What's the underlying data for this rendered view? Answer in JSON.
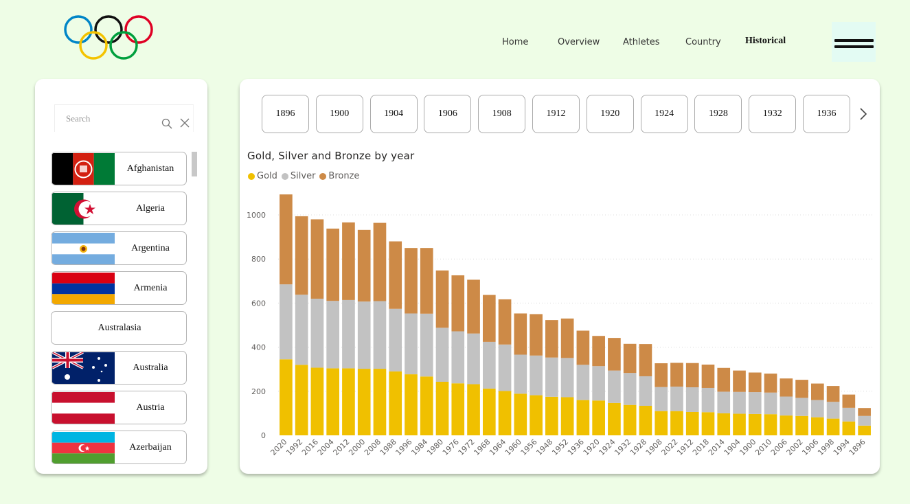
{
  "nav": {
    "items": [
      {
        "label": "Home",
        "name": "nav-home"
      },
      {
        "label": "Overview",
        "name": "nav-overview"
      },
      {
        "label": "Athletes",
        "name": "nav-athletes"
      },
      {
        "label": "Country",
        "name": "nav-country"
      },
      {
        "label": "Historical",
        "name": "nav-historical",
        "active": true
      }
    ]
  },
  "search": {
    "placeholder": "Search"
  },
  "countries": [
    {
      "name": "Afghanistan",
      "flag": "afghanistan-flag"
    },
    {
      "name": "Algeria",
      "flag": "algeria-flag"
    },
    {
      "name": "Argentina",
      "flag": "argentina-flag"
    },
    {
      "name": "Armenia",
      "flag": "armenia-flag"
    },
    {
      "name": "Australasia",
      "flag": null
    },
    {
      "name": "Australia",
      "flag": "australia-flag"
    },
    {
      "name": "Austria",
      "flag": "austria-flag"
    },
    {
      "name": "Azerbaijan",
      "flag": "azerbaijan-flag"
    }
  ],
  "years": [
    "1896",
    "1900",
    "1904",
    "1906",
    "1908",
    "1912",
    "1920",
    "1924",
    "1928",
    "1932",
    "1936"
  ],
  "colors": {
    "gold": "#f0c000",
    "silver": "#c2c2c2",
    "bronze": "#cd8a47",
    "background": "#eefde6"
  },
  "chart_data": {
    "type": "bar",
    "stacked": true,
    "title": "Gold, Silver and Bronze by year",
    "categories": [
      "2020",
      "1992",
      "2016",
      "2004",
      "2012",
      "2000",
      "2008",
      "1988",
      "1996",
      "1984",
      "1980",
      "1976",
      "1972",
      "1968",
      "1964",
      "1960",
      "1956",
      "1948",
      "1952",
      "1936",
      "1920",
      "1924",
      "1932",
      "1928",
      "1908",
      "2022",
      "1912",
      "2018",
      "2014",
      "1904",
      "1900",
      "2010",
      "2006",
      "2002",
      "1906",
      "1998",
      "1994",
      "1896"
    ],
    "series": [
      {
        "name": "Gold",
        "color": "#f0c000",
        "values": [
          345,
          320,
          307,
          304,
          304,
          302,
          302,
          290,
          277,
          267,
          243,
          236,
          232,
          212,
          201,
          189,
          182,
          175,
          173,
          160,
          158,
          147,
          138,
          134,
          110,
          110,
          106,
          105,
          100,
          98,
          97,
          96,
          90,
          88,
          82,
          76,
          63,
          44
        ]
      },
      {
        "name": "Silver",
        "color": "#c2c2c2",
        "values": [
          340,
          318,
          313,
          306,
          310,
          305,
          307,
          284,
          276,
          285,
          245,
          236,
          230,
          212,
          211,
          177,
          180,
          178,
          178,
          160,
          156,
          147,
          145,
          134,
          109,
          111,
          112,
          110,
          98,
          99,
          99,
          98,
          86,
          82,
          78,
          76,
          62,
          44
        ]
      },
      {
        "name": "Bronze",
        "color": "#cd8a47",
        "values": [
          408,
          356,
          360,
          328,
          352,
          325,
          355,
          306,
          297,
          298,
          260,
          254,
          244,
          213,
          205,
          187,
          188,
          170,
          179,
          155,
          137,
          148,
          132,
          146,
          108,
          108,
          110,
          106,
          108,
          97,
          89,
          86,
          82,
          82,
          75,
          72,
          60,
          36
        ]
      }
    ],
    "ylim": [
      0,
      1100
    ],
    "yticks": [
      0,
      200,
      400,
      600,
      800,
      1000
    ],
    "legend_position": "top-left",
    "grid": true
  }
}
